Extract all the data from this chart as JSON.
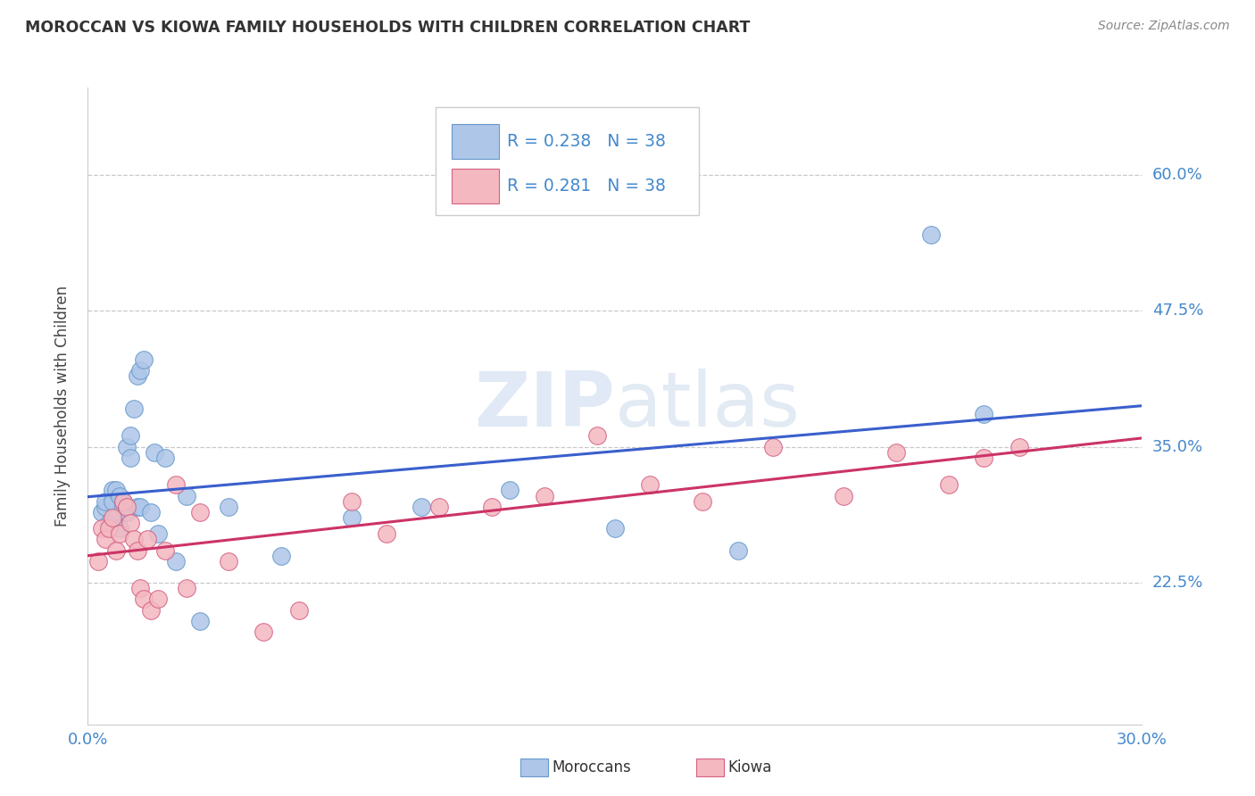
{
  "title": "MOROCCAN VS KIOWA FAMILY HOUSEHOLDS WITH CHILDREN CORRELATION CHART",
  "source": "Source: ZipAtlas.com",
  "ylabel": "Family Households with Children",
  "ytick_labels": [
    "22.5%",
    "35.0%",
    "47.5%",
    "60.0%"
  ],
  "ytick_values": [
    0.225,
    0.35,
    0.475,
    0.6
  ],
  "xlim": [
    0.0,
    0.3
  ],
  "ylim": [
    0.095,
    0.68
  ],
  "watermark_top": "ZIP",
  "watermark_bottom": "atlas",
  "moroccan_R": 0.238,
  "moroccan_N": 38,
  "kiowa_R": 0.281,
  "kiowa_N": 38,
  "moroccan_color": "#aec6e8",
  "kiowa_color": "#f4b8c1",
  "moroccan_edge_color": "#6699cc",
  "kiowa_edge_color": "#d46080",
  "moroccan_line_color": "#3a5fcd",
  "kiowa_line_color": "#cc3366",
  "legend_moroccan_label": "Moroccans",
  "legend_kiowa_label": "Kiowa",
  "background_color": "#ffffff",
  "grid_color": "#bbbbbb",
  "axis_label_color": "#4488cc",
  "moroccan_scatter_x": [
    0.004,
    0.005,
    0.005,
    0.006,
    0.007,
    0.007,
    0.008,
    0.008,
    0.009,
    0.009,
    0.01,
    0.01,
    0.011,
    0.011,
    0.012,
    0.012,
    0.013,
    0.014,
    0.014,
    0.015,
    0.015,
    0.016,
    0.018,
    0.019,
    0.02,
    0.022,
    0.025,
    0.028,
    0.032,
    0.04,
    0.055,
    0.075,
    0.095,
    0.12,
    0.15,
    0.185,
    0.24,
    0.255
  ],
  "moroccan_scatter_y": [
    0.29,
    0.295,
    0.3,
    0.28,
    0.31,
    0.3,
    0.285,
    0.31,
    0.275,
    0.305,
    0.295,
    0.3,
    0.29,
    0.35,
    0.34,
    0.36,
    0.385,
    0.295,
    0.415,
    0.295,
    0.42,
    0.43,
    0.29,
    0.345,
    0.27,
    0.34,
    0.245,
    0.305,
    0.19,
    0.295,
    0.25,
    0.285,
    0.295,
    0.31,
    0.275,
    0.255,
    0.545,
    0.38
  ],
  "kiowa_scatter_x": [
    0.003,
    0.004,
    0.005,
    0.006,
    0.007,
    0.008,
    0.009,
    0.01,
    0.011,
    0.012,
    0.013,
    0.014,
    0.015,
    0.016,
    0.017,
    0.018,
    0.02,
    0.022,
    0.025,
    0.028,
    0.032,
    0.04,
    0.05,
    0.06,
    0.075,
    0.085,
    0.1,
    0.115,
    0.13,
    0.145,
    0.16,
    0.175,
    0.195,
    0.215,
    0.23,
    0.245,
    0.255,
    0.265
  ],
  "kiowa_scatter_y": [
    0.245,
    0.275,
    0.265,
    0.275,
    0.285,
    0.255,
    0.27,
    0.3,
    0.295,
    0.28,
    0.265,
    0.255,
    0.22,
    0.21,
    0.265,
    0.2,
    0.21,
    0.255,
    0.315,
    0.22,
    0.29,
    0.245,
    0.18,
    0.2,
    0.3,
    0.27,
    0.295,
    0.295,
    0.305,
    0.36,
    0.315,
    0.3,
    0.35,
    0.305,
    0.345,
    0.315,
    0.34,
    0.35
  ]
}
